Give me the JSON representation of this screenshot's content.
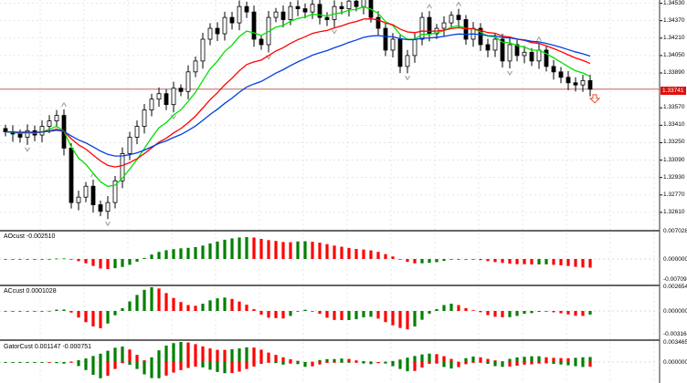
{
  "chart_data": {
    "type": "candlestick",
    "price_axis_labels": [
      "1.34530",
      "1.34370",
      "1.34210",
      "1.34050",
      "1.33890",
      "1.33570",
      "1.33410",
      "1.33250",
      "1.33090",
      "1.32930",
      "1.32770",
      "1.32610"
    ],
    "current_price": "1.33741",
    "ylim": [
      1.3245,
      1.3456
    ],
    "closes": [
      1.3335,
      1.3333,
      1.333,
      1.3336,
      1.3332,
      1.334,
      1.3345,
      1.335,
      1.332,
      1.327,
      1.3275,
      1.3285,
      1.3268,
      1.3262,
      1.327,
      1.329,
      1.3315,
      1.333,
      1.334,
      1.3355,
      1.3365,
      1.337,
      1.336,
      1.3375,
      1.3372,
      1.339,
      1.34,
      1.342,
      1.343,
      1.3425,
      1.344,
      1.3435,
      1.345,
      1.3445,
      1.342,
      1.3415,
      1.344,
      1.3445,
      1.3438,
      1.345,
      1.3448,
      1.3445,
      1.3452,
      1.344,
      1.3438,
      1.345,
      1.3448,
      1.3455,
      1.345,
      1.3458,
      1.344,
      1.343,
      1.341,
      1.342,
      1.3395,
      1.3405,
      1.342,
      1.344,
      1.3425,
      1.343,
      1.3435,
      1.3442,
      1.3438,
      1.342,
      1.343,
      1.3415,
      1.341,
      1.342,
      1.34,
      1.3415,
      1.3405,
      1.3408,
      1.34,
      1.341,
      1.3395,
      1.339,
      1.3385,
      1.338,
      1.3378,
      1.3382,
      1.33741
    ],
    "moving_averages": [
      {
        "name": "fast",
        "color": "#00e000",
        "period": 8
      },
      {
        "name": "medium",
        "color": "#ff0000",
        "period": 18
      },
      {
        "name": "slow",
        "color": "#0040e0",
        "period": 30
      }
    ]
  },
  "indicators": {
    "ao": {
      "label": "AOcust -0.002510",
      "axis": [
        "0.007028",
        "0.000000",
        "-0.007094"
      ]
    },
    "ac": {
      "label": "ACcust 0.0001028",
      "axis": [
        "0.0026546",
        "0.0000000",
        "-0.0031645"
      ]
    },
    "gator": {
      "label": "GatorCust 0.001147 -0.000751",
      "axis": [
        "0.003465",
        "0.000000"
      ]
    }
  },
  "colors": {
    "up": "#008000",
    "down": "#ff0000",
    "grid": "#d8d8d8",
    "current": "#e01010"
  }
}
